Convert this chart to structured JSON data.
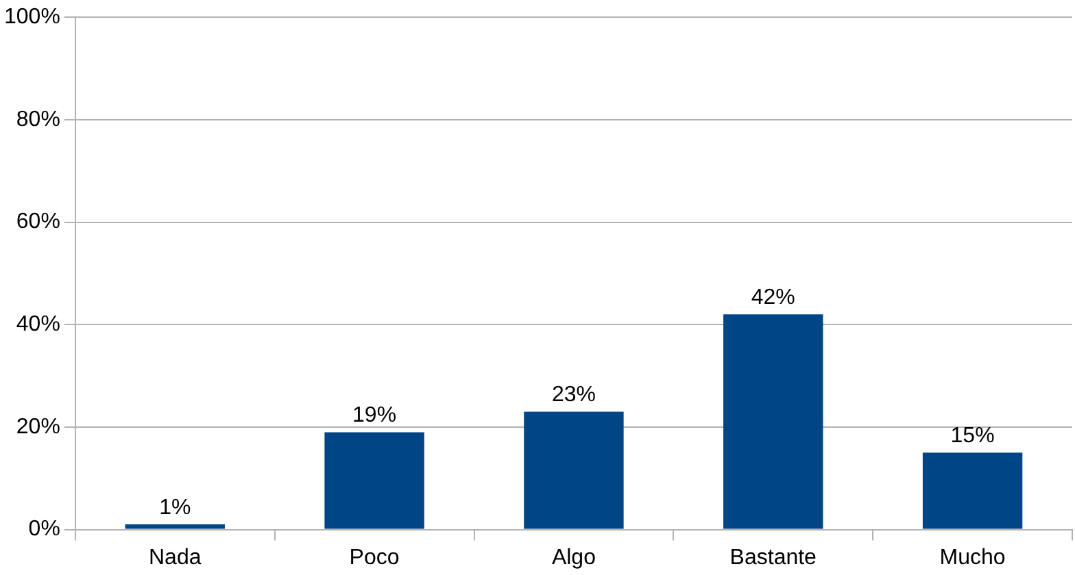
{
  "chart_data": {
    "type": "bar",
    "categories": [
      "Nada",
      "Poco",
      "Algo",
      "Bastante",
      "Mucho"
    ],
    "values": [
      1,
      19,
      23,
      42,
      15
    ],
    "value_labels": [
      "1%",
      "19%",
      "23%",
      "42%",
      "15%"
    ],
    "color": "#004586",
    "ylim": [
      0,
      100
    ],
    "yticks": [
      {
        "value": 0,
        "label": "0%"
      },
      {
        "value": 20,
        "label": "20%"
      },
      {
        "value": 40,
        "label": "40%"
      },
      {
        "value": 60,
        "label": "60%"
      },
      {
        "value": 80,
        "label": "80%"
      },
      {
        "value": 100,
        "label": "100%"
      }
    ],
    "grid": "y",
    "legend": false
  }
}
